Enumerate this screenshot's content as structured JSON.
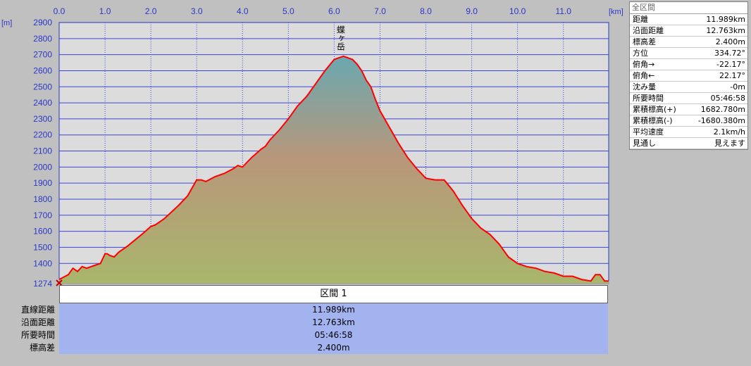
{
  "chart_data": {
    "type": "area",
    "xunit": "[km]",
    "yunit": "[m]",
    "xlim": [
      0,
      11.989
    ],
    "ylim": [
      1274,
      2900
    ],
    "x_ticks": [
      "0.0",
      "1.0",
      "2.0",
      "3.0",
      "4.0",
      "5.0",
      "6.0",
      "7.0",
      "8.0",
      "9.0",
      "10.0",
      "11.0"
    ],
    "y_ticks": [
      "2900",
      "2800",
      "2700",
      "2600",
      "2500",
      "2400",
      "2300",
      "2200",
      "2100",
      "2000",
      "1900",
      "1800",
      "1700",
      "1600",
      "1500",
      "1400",
      "1274"
    ],
    "grid": true,
    "peak_label": "蝶ヶ岳",
    "series": [
      {
        "x": [
          0,
          0.2,
          0.3,
          0.4,
          0.5,
          0.6,
          0.7,
          0.8,
          0.9,
          1.0,
          1.05,
          1.1,
          1.2,
          1.3,
          1.5,
          1.8,
          2.0,
          2.1,
          2.3,
          2.6,
          2.8,
          3.0,
          3.1,
          3.2,
          3.4,
          3.6,
          3.8,
          3.9,
          4.0,
          4.1,
          4.2,
          4.4,
          4.5,
          4.6,
          4.8,
          5.0,
          5.2,
          5.4,
          5.6,
          5.8,
          6.0,
          6.1,
          6.2,
          6.3,
          6.4,
          6.5,
          6.6,
          6.7,
          6.8,
          6.9,
          7.0,
          7.2,
          7.4,
          7.6,
          7.8,
          8.0,
          8.2,
          8.4,
          8.6,
          8.8,
          9.0,
          9.2,
          9.4,
          9.6,
          9.8,
          10.0,
          10.2,
          10.4,
          10.6,
          10.8,
          11.0,
          11.2,
          11.4,
          11.6,
          11.7,
          11.8,
          11.9,
          11.989
        ],
        "values": [
          1300,
          1330,
          1370,
          1350,
          1380,
          1370,
          1380,
          1390,
          1400,
          1460,
          1460,
          1450,
          1440,
          1470,
          1510,
          1580,
          1630,
          1640,
          1680,
          1760,
          1820,
          1920,
          1920,
          1910,
          1940,
          1960,
          1990,
          2010,
          2000,
          2030,
          2060,
          2110,
          2130,
          2170,
          2230,
          2300,
          2380,
          2440,
          2520,
          2600,
          2670,
          2680,
          2690,
          2680,
          2670,
          2640,
          2600,
          2540,
          2500,
          2420,
          2350,
          2250,
          2150,
          2060,
          1990,
          1930,
          1920,
          1920,
          1850,
          1760,
          1680,
          1620,
          1580,
          1520,
          1440,
          1400,
          1380,
          1370,
          1350,
          1340,
          1320,
          1320,
          1300,
          1290,
          1330,
          1330,
          1290,
          1290
        ]
      }
    ]
  },
  "stats": {
    "title": "全区間",
    "rows": [
      {
        "label": "距離",
        "value": "11.989km"
      },
      {
        "label": "沿面距離",
        "value": "12.763km"
      },
      {
        "label": "標高差",
        "value": "2.400m"
      },
      {
        "label": "方位",
        "value": "334.72°"
      },
      {
        "label": "俯角→",
        "value": "-22.17°"
      },
      {
        "label": "俯角←",
        "value": "22.17°"
      },
      {
        "label": "沈み量",
        "value": "-0m"
      },
      {
        "label": "所要時間",
        "value": "05:46:58"
      },
      {
        "label": "累積標高(+)",
        "value": "1682.780m"
      },
      {
        "label": "累積標高(-)",
        "value": "-1680.380m"
      },
      {
        "label": "平均速度",
        "value": "2.1km/h"
      },
      {
        "label": "見通し",
        "value": "見えます"
      }
    ]
  },
  "section": {
    "header": "区間 1",
    "rows": [
      {
        "label": "直線距離",
        "value": "11.989km"
      },
      {
        "label": "沿面距離",
        "value": "12.763km"
      },
      {
        "label": "所要時間",
        "value": "05:46:58"
      },
      {
        "label": "標高差",
        "value": "2.400m"
      }
    ]
  },
  "colors": {
    "plot_bg": "#dcdcdc",
    "grid": "#3a46d8",
    "profile_line": "#ff0000",
    "fill_top": "#7fa6a8",
    "fill_mid": "#b8977a",
    "fill_bottom": "#a9b36e"
  }
}
